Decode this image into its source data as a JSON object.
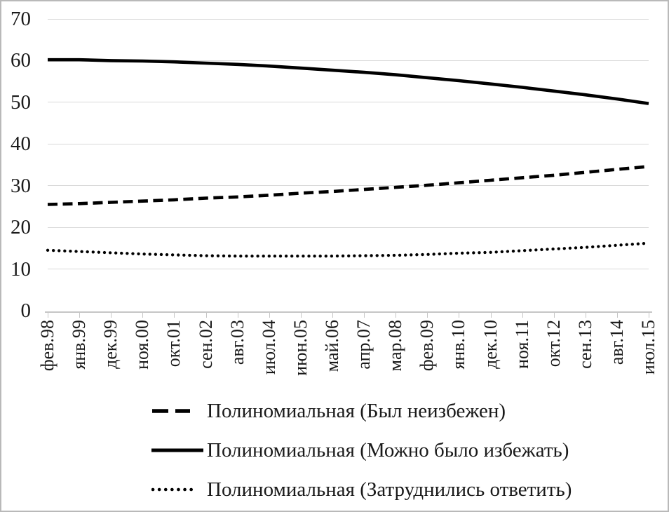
{
  "chart": {
    "background_color": "#ffffff",
    "gridline_color": "#d9d9d9",
    "axis_color": "#c6c6c6",
    "text_color": "#1a1a1a",
    "series_color": "#000000"
  },
  "chart_data": {
    "type": "line",
    "title": "",
    "xlabel": "",
    "ylabel": "",
    "ylim": [
      0,
      70
    ],
    "yticks": [
      0,
      10,
      20,
      30,
      40,
      50,
      60,
      70
    ],
    "grid": "horizontal",
    "legend_position": "bottom",
    "categories": [
      "фев.98",
      "янв.99",
      "дек.99",
      "ноя.00",
      "окт.01",
      "сен.02",
      "авг.03",
      "июл.04",
      "июн.05",
      "май.06",
      "апр.07",
      "мар.08",
      "фев.09",
      "янв.10",
      "дек.10",
      "ноя.11",
      "окт.12",
      "сен.13",
      "авг.14",
      "июл.15"
    ],
    "series": [
      {
        "name": "Был неизбежен",
        "legend_label": "Полиномиальная (Был неизбежен)",
        "style": "dashed",
        "color": "#000000",
        "values": [
          25.5,
          25.7,
          26.0,
          26.3,
          26.6,
          27.0,
          27.3,
          27.7,
          28.2,
          28.6,
          29.1,
          29.6,
          30.1,
          30.7,
          31.3,
          31.9,
          32.5,
          33.2,
          33.9,
          34.6
        ]
      },
      {
        "name": "Можно было избежать",
        "legend_label": "Полиномиальная (Можно было избежать)",
        "style": "solid",
        "color": "#000000",
        "values": [
          60.2,
          60.2,
          60.0,
          59.9,
          59.7,
          59.4,
          59.1,
          58.7,
          58.2,
          57.7,
          57.2,
          56.6,
          55.9,
          55.2,
          54.4,
          53.6,
          52.7,
          51.8,
          50.8,
          49.7
        ]
      },
      {
        "name": "Затруднились ответить",
        "legend_label": "Полиномиальная (Затруднились ответить)",
        "style": "dotted",
        "color": "#000000",
        "values": [
          14.5,
          14.2,
          13.9,
          13.6,
          13.4,
          13.2,
          13.1,
          13.1,
          13.1,
          13.1,
          13.2,
          13.3,
          13.5,
          13.8,
          14.0,
          14.4,
          14.8,
          15.2,
          15.7,
          16.2
        ]
      }
    ]
  }
}
